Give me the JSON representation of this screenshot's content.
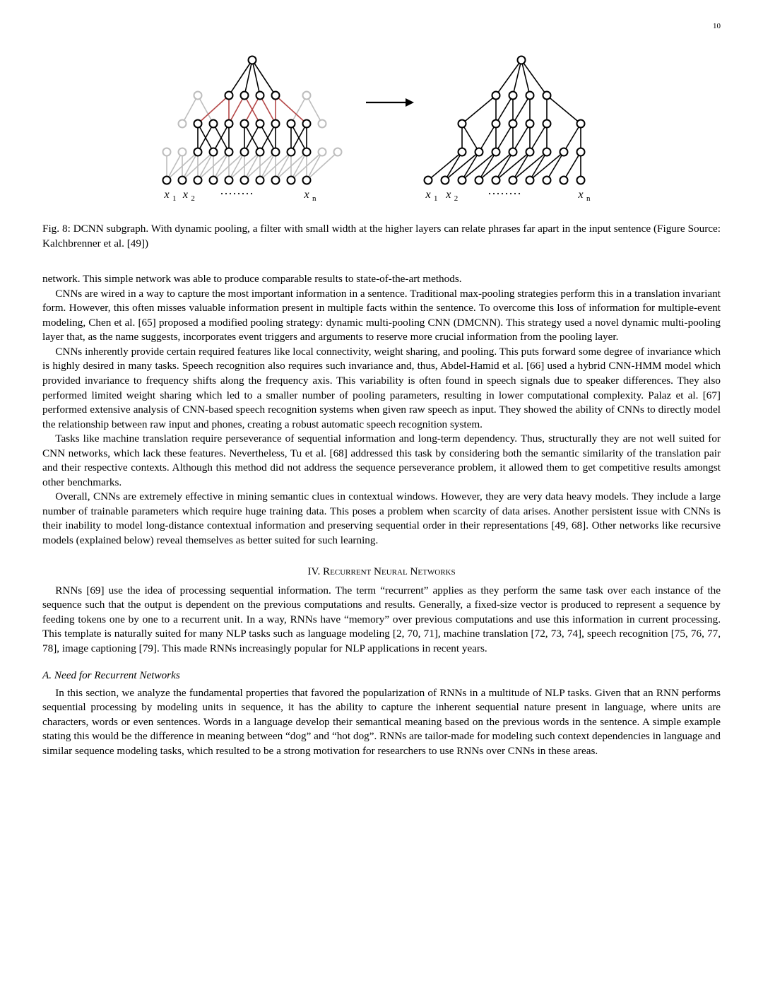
{
  "page_number": "10",
  "figure": {
    "caption": "Fig. 8: DCNN subgraph. With dynamic pooling, a filter with small width at the higher layers can relate phrases far apart in the input sentence (Figure Source: Kalchbrenner et al. [49])",
    "left": {
      "labels": {
        "x1": "x",
        "sub1": "1",
        "x2": "x",
        "sub2": "2",
        "dots": "········",
        "xn": "x",
        "subn": "n"
      },
      "nodes": {
        "layer0": [
          0,
          1,
          2,
          3,
          4,
          5,
          6,
          7,
          8,
          9
        ],
        "layer1": [
          0,
          1,
          2,
          3,
          4,
          5,
          6,
          7,
          8,
          9,
          10,
          11
        ],
        "layer2": [
          1,
          2,
          3,
          4,
          5,
          6,
          7,
          8,
          9,
          10
        ],
        "layer3": [
          2,
          4,
          5,
          6,
          7,
          9
        ],
        "layer4": [
          5.5
        ]
      },
      "edges_gray": [
        [
          0,
          0,
          1,
          0
        ],
        [
          0,
          0,
          1,
          1
        ],
        [
          0,
          0,
          1,
          2
        ],
        [
          0,
          1,
          1,
          1
        ],
        [
          0,
          1,
          1,
          2
        ],
        [
          0,
          1,
          1,
          3
        ],
        [
          0,
          2,
          1,
          2
        ],
        [
          0,
          2,
          1,
          3
        ],
        [
          0,
          2,
          1,
          4
        ],
        [
          0,
          3,
          1,
          3
        ],
        [
          0,
          3,
          1,
          4
        ],
        [
          0,
          3,
          1,
          5
        ],
        [
          0,
          4,
          1,
          4
        ],
        [
          0,
          4,
          1,
          5
        ],
        [
          0,
          4,
          1,
          6
        ],
        [
          0,
          5,
          1,
          5
        ],
        [
          0,
          5,
          1,
          6
        ],
        [
          0,
          5,
          1,
          7
        ],
        [
          0,
          6,
          1,
          6
        ],
        [
          0,
          6,
          1,
          7
        ],
        [
          0,
          6,
          1,
          8
        ],
        [
          0,
          7,
          1,
          7
        ],
        [
          0,
          7,
          1,
          8
        ],
        [
          0,
          7,
          1,
          9
        ],
        [
          0,
          8,
          1,
          8
        ],
        [
          0,
          8,
          1,
          9
        ],
        [
          0,
          8,
          1,
          10
        ],
        [
          0,
          9,
          1,
          9
        ],
        [
          0,
          9,
          1,
          10
        ],
        [
          0,
          9,
          1,
          11
        ],
        [
          2,
          1,
          3,
          2
        ],
        [
          2,
          3,
          3,
          2
        ],
        [
          2,
          8,
          3,
          9
        ],
        [
          2,
          10,
          3,
          9
        ]
      ],
      "edges_black": [
        [
          1,
          2,
          2,
          2
        ],
        [
          1,
          3,
          2,
          2
        ],
        [
          1,
          4,
          2,
          3
        ],
        [
          1,
          2,
          2,
          3
        ],
        [
          1,
          3,
          2,
          4
        ],
        [
          1,
          4,
          2,
          4
        ],
        [
          1,
          5,
          2,
          5
        ],
        [
          1,
          6,
          2,
          5
        ],
        [
          1,
          5,
          2,
          6
        ],
        [
          1,
          7,
          2,
          6
        ],
        [
          1,
          6,
          2,
          7
        ],
        [
          1,
          7,
          2,
          7
        ],
        [
          1,
          8,
          2,
          8
        ],
        [
          1,
          9,
          2,
          8
        ],
        [
          1,
          8,
          2,
          9
        ],
        [
          1,
          9,
          2,
          9
        ],
        [
          3,
          4,
          4,
          5.5
        ],
        [
          3,
          5,
          4,
          5.5
        ],
        [
          3,
          6,
          4,
          5.5
        ],
        [
          3,
          7,
          4,
          5.5
        ]
      ],
      "edges_red": [
        [
          2,
          2,
          3,
          4
        ],
        [
          2,
          4,
          3,
          4
        ],
        [
          2,
          4,
          3,
          5
        ],
        [
          2,
          6,
          3,
          5
        ],
        [
          2,
          5,
          3,
          6
        ],
        [
          2,
          7,
          3,
          6
        ],
        [
          2,
          7,
          3,
          7
        ],
        [
          2,
          9,
          3,
          7
        ]
      ],
      "colors": {
        "gray": "#bdbdbd",
        "black": "#000000",
        "red": "#b54848"
      }
    },
    "right": {
      "labels": {
        "x1": "x",
        "sub1": "1",
        "x2": "x",
        "sub2": "2",
        "dots": "········",
        "xn": "x",
        "subn": "n"
      },
      "nodes": {
        "layer0": [
          0,
          1,
          2,
          3,
          4,
          5,
          6,
          7,
          8,
          9
        ],
        "layer1": [
          2,
          3,
          4,
          5,
          6,
          7,
          8,
          9
        ],
        "layer2": [
          2,
          4,
          5,
          6,
          7,
          9
        ],
        "layer3": [
          4,
          5,
          6,
          7
        ],
        "layer4": [
          5.5
        ]
      },
      "edges": [
        [
          0,
          0,
          1,
          2
        ],
        [
          0,
          1,
          1,
          2
        ],
        [
          0,
          2,
          1,
          3
        ],
        [
          0,
          1,
          1,
          3
        ],
        [
          0,
          2,
          1,
          4
        ],
        [
          0,
          3,
          1,
          4
        ],
        [
          0,
          4,
          1,
          5
        ],
        [
          0,
          3,
          1,
          5
        ],
        [
          0,
          4,
          1,
          6
        ],
        [
          0,
          5,
          1,
          6
        ],
        [
          0,
          6,
          1,
          7
        ],
        [
          0,
          5,
          1,
          7
        ],
        [
          0,
          6,
          1,
          8
        ],
        [
          0,
          7,
          1,
          8
        ],
        [
          0,
          8,
          1,
          9
        ],
        [
          0,
          9,
          1,
          9
        ],
        [
          1,
          2,
          2,
          2
        ],
        [
          1,
          3,
          2,
          2
        ],
        [
          1,
          4,
          2,
          4
        ],
        [
          1,
          3,
          2,
          4
        ],
        [
          1,
          5,
          2,
          5
        ],
        [
          1,
          4,
          2,
          5
        ],
        [
          1,
          6,
          2,
          6
        ],
        [
          1,
          5,
          2,
          6
        ],
        [
          1,
          7,
          2,
          7
        ],
        [
          1,
          6,
          2,
          7
        ],
        [
          1,
          8,
          2,
          9
        ],
        [
          1,
          9,
          2,
          9
        ],
        [
          2,
          2,
          3,
          4
        ],
        [
          2,
          4,
          3,
          4
        ],
        [
          2,
          4,
          3,
          5
        ],
        [
          2,
          5,
          3,
          5
        ],
        [
          2,
          6,
          3,
          6
        ],
        [
          2,
          5,
          3,
          6
        ],
        [
          2,
          7,
          3,
          7
        ],
        [
          2,
          9,
          3,
          7
        ],
        [
          3,
          4,
          4,
          5.5
        ],
        [
          3,
          5,
          4,
          5.5
        ],
        [
          3,
          6,
          4,
          5.5
        ],
        [
          3,
          7,
          4,
          5.5
        ]
      ],
      "color": "#000000"
    }
  },
  "para1": "network. This simple network was able to produce comparable results to state-of-the-art methods.",
  "para2": "CNNs are wired in a way to capture the most important information in a sentence. Traditional max-pooling strategies perform this in a translation invariant form. However, this often misses valuable information present in multiple facts within the sentence. To overcome this loss of information for multiple-event modeling, Chen et al. [65] proposed a modified pooling strategy: dynamic multi-pooling CNN (DMCNN). This strategy used a novel dynamic multi-pooling layer that, as the name suggests, incorporates event triggers and arguments to reserve more crucial information from the pooling layer.",
  "para3": "CNNs inherently provide certain required features like local connectivity, weight sharing, and pooling. This puts forward some degree of invariance which is highly desired in many tasks. Speech recognition also requires such invariance and, thus, Abdel-Hamid et al. [66] used a hybrid CNN-HMM model which provided invariance to frequency shifts along the frequency axis. This variability is often found in speech signals due to speaker differences. They also performed limited weight sharing which led to a smaller number of pooling parameters, resulting in lower computational complexity. Palaz et al. [67] performed extensive analysis of CNN-based speech recognition systems when given raw speech as input. They showed the ability of CNNs to directly model the relationship between raw input and phones, creating a robust automatic speech recognition system.",
  "para4": "Tasks like machine translation require perseverance of sequential information and long-term dependency. Thus, structurally they are not well suited for CNN networks, which lack these features. Nevertheless, Tu et al. [68] addressed this task by considering both the semantic similarity of the translation pair and their respective contexts. Although this method did not address the sequence perseverance problem, it allowed them to get competitive results amongst other benchmarks.",
  "para5": "Overall, CNNs are extremely effective in mining semantic clues in contextual windows. However, they are very data heavy models. They include a large number of trainable parameters which require huge training data. This poses a problem when scarcity of data arises. Another persistent issue with CNNs is their inability to model long-distance contextual information and preserving sequential order in their representations [49, 68]. Other networks like recursive models (explained below) reveal themselves as better suited for such learning.",
  "section_heading": "IV.  Recurrent Neural Networks",
  "para6": "RNNs [69] use the idea of processing sequential information. The term “recurrent” applies as they perform the same task over each instance of the sequence such that the output is dependent on the previous computations and results. Generally, a fixed-size vector is produced to represent a sequence by feeding tokens one by one to a recurrent unit. In a way, RNNs have “memory” over previous computations and use this information in current processing. This template is naturally suited for many NLP tasks such as language modeling [2, 70, 71], machine translation [72, 73, 74], speech recognition [75, 76, 77, 78], image captioning [79]. This made RNNs increasingly popular for NLP applications in recent years.",
  "subsection_heading": "A. Need for Recurrent Networks",
  "para7": "In this section, we analyze the fundamental properties that favored the popularization of RNNs in a multitude of NLP tasks. Given that an RNN performs sequential processing by modeling units in sequence, it has the ability to capture the inherent sequential nature present in language, where units are characters, words or even sentences. Words in a language develop their semantical meaning based on the previous words in the sentence. A simple example stating this would be the difference in meaning between “dog” and “hot dog”. RNNs are tailor-made for modeling such context dependencies in language and similar sequence modeling tasks, which resulted to be a strong motivation for researchers to use RNNs over CNNs in these areas."
}
